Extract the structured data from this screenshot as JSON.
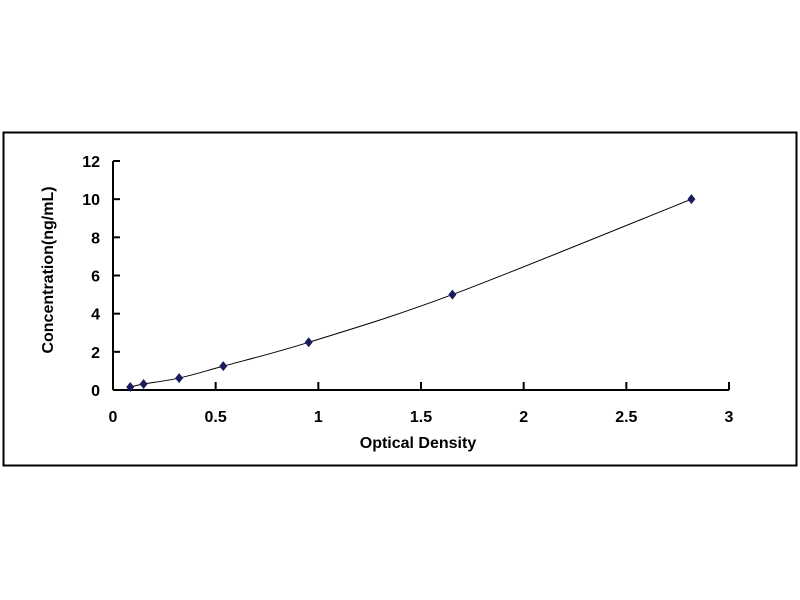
{
  "chart_data": {
    "type": "scatter",
    "title": "",
    "xlabel": "Optical Density",
    "ylabel": "Concentration(ng/mL)",
    "xlim": [
      0,
      3
    ],
    "ylim": [
      0,
      12
    ],
    "xticks": [
      "0",
      "0.5",
      "1",
      "1.5",
      "2",
      "2.5",
      "3"
    ],
    "yticks": [
      "0",
      "2",
      "4",
      "6",
      "8",
      "10",
      "12"
    ],
    "grid": false,
    "smooth_line": true,
    "marker": "diamond",
    "colors": {
      "marker": "#1a1a5e",
      "line": "#000000"
    },
    "x": [
      0.084,
      0.149,
      0.322,
      0.537,
      0.953,
      1.653,
      2.817
    ],
    "y": [
      0.156,
      0.312,
      0.625,
      1.25,
      2.5,
      5,
      10
    ]
  }
}
